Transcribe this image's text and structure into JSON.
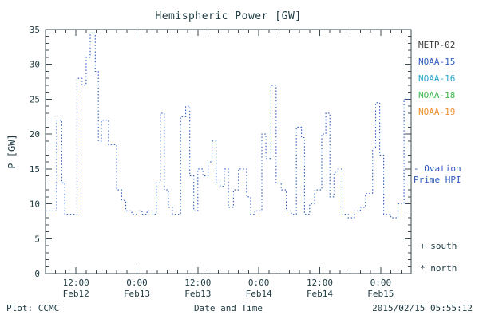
{
  "title": "Hemispheric Power [GW]",
  "axes": {
    "ylabel": "P [GW]"
  },
  "footer": {
    "left": "Plot: CCMC",
    "xlabel": "Date and Time",
    "timestamp": "2015/02/15 05:55:12"
  },
  "legend": {
    "satellites": [
      {
        "label": "METP-02",
        "color": "#3b3b3b"
      },
      {
        "label": "NOAA-15",
        "color": "#2d5bbf"
      },
      {
        "label": "NOAA-16",
        "color": "#2aa7cc"
      },
      {
        "label": "NOAA-18",
        "color": "#3cb54a"
      },
      {
        "label": "NOAA-19",
        "color": "#ef8f2e"
      }
    ],
    "hpi": {
      "line1": "- Ovation",
      "line2": "Prime HPI",
      "color": "#2d5bbf"
    },
    "markers": [
      {
        "label": "+ south"
      },
      {
        "label": "* north"
      }
    ]
  },
  "chart_data": {
    "type": "line",
    "step": true,
    "line_style": "dotted",
    "color": "#2d5bbf",
    "title": "Hemispheric Power [GW]",
    "xlabel": "Date and Time",
    "ylabel": "P [GW]",
    "ylim": [
      0,
      35
    ],
    "xlim_hours": [
      0,
      72
    ],
    "y_ticks": [
      0,
      5,
      10,
      15,
      20,
      25,
      30,
      35
    ],
    "x_ticks": [
      {
        "t": 6,
        "time": "12:00",
        "date": "Feb12"
      },
      {
        "t": 18,
        "time": "0:00",
        "date": "Feb13"
      },
      {
        "t": 30,
        "time": "12:00",
        "date": "Feb13"
      },
      {
        "t": 42,
        "time": "0:00",
        "date": "Feb14"
      },
      {
        "t": 54,
        "time": "12:00",
        "date": "Feb14"
      },
      {
        "t": 66,
        "time": "0:00",
        "date": "Feb15"
      }
    ],
    "points": [
      [
        0,
        9
      ],
      [
        2.2,
        22
      ],
      [
        3.2,
        13
      ],
      [
        3.8,
        8.5
      ],
      [
        6.2,
        28
      ],
      [
        7.2,
        27
      ],
      [
        8,
        31
      ],
      [
        8.8,
        34.5
      ],
      [
        9.8,
        29
      ],
      [
        10.4,
        19
      ],
      [
        11,
        22
      ],
      [
        12.4,
        18.5
      ],
      [
        14,
        12
      ],
      [
        15,
        10.5
      ],
      [
        15.8,
        9
      ],
      [
        17,
        8.5
      ],
      [
        18,
        9
      ],
      [
        19,
        8.5
      ],
      [
        20,
        9
      ],
      [
        21,
        8.5
      ],
      [
        21.8,
        13
      ],
      [
        22.6,
        23
      ],
      [
        23.4,
        12
      ],
      [
        24.2,
        9.5
      ],
      [
        25,
        8.5
      ],
      [
        26.6,
        22.5
      ],
      [
        27.6,
        24
      ],
      [
        28.4,
        14
      ],
      [
        29.2,
        9
      ],
      [
        30,
        15
      ],
      [
        31,
        14
      ],
      [
        32,
        16
      ],
      [
        32.8,
        19
      ],
      [
        33.6,
        13
      ],
      [
        34.4,
        12.5
      ],
      [
        35.2,
        15
      ],
      [
        36,
        9.5
      ],
      [
        37,
        12
      ],
      [
        38,
        15
      ],
      [
        39.6,
        11
      ],
      [
        40.4,
        8.5
      ],
      [
        41.2,
        9
      ],
      [
        42.6,
        20
      ],
      [
        43.4,
        16.5
      ],
      [
        44.4,
        27
      ],
      [
        45.4,
        13
      ],
      [
        46.4,
        12
      ],
      [
        47.4,
        9
      ],
      [
        48.4,
        8.5
      ],
      [
        49.4,
        21
      ],
      [
        50.4,
        19.5
      ],
      [
        51,
        8.5
      ],
      [
        52,
        10
      ],
      [
        53,
        12
      ],
      [
        54.4,
        20
      ],
      [
        55.2,
        23
      ],
      [
        56,
        11
      ],
      [
        56.8,
        14.5
      ],
      [
        57.6,
        15
      ],
      [
        58.4,
        8.5
      ],
      [
        59.6,
        8
      ],
      [
        60.8,
        9
      ],
      [
        62,
        9.5
      ],
      [
        63,
        11.5
      ],
      [
        64.4,
        18
      ],
      [
        65,
        24.5
      ],
      [
        65.8,
        17
      ],
      [
        66.6,
        8.5
      ],
      [
        68,
        8
      ],
      [
        69.4,
        10
      ],
      [
        70.6,
        25
      ]
    ]
  }
}
